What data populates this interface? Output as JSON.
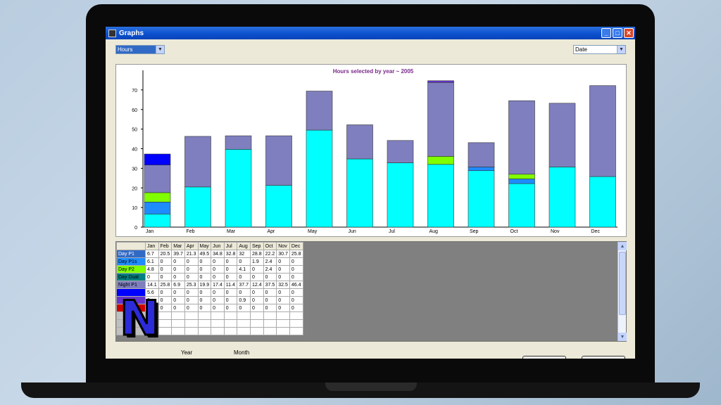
{
  "window": {
    "title": "Graphs"
  },
  "controls": {
    "metric_select": "Hours",
    "x_select": "Date"
  },
  "chart_data": {
    "type": "bar",
    "stacked": true,
    "title": "Hours selected by year ~ 2005",
    "categories": [
      "Jan",
      "Feb",
      "Mar",
      "Apr",
      "May",
      "Jun",
      "Jul",
      "Aug",
      "Sep",
      "Oct",
      "Nov",
      "Dec"
    ],
    "ylim": [
      0,
      80
    ],
    "yticks": [
      0,
      10,
      20,
      30,
      40,
      50,
      60,
      70
    ],
    "series": [
      {
        "name": "Day P1",
        "color": "#00ffff",
        "values": [
          6.7,
          20.5,
          39.7,
          21.3,
          49.5,
          34.8,
          32.8,
          32,
          28.8,
          22.2,
          30.7,
          25.8
        ]
      },
      {
        "name": "Day P1s",
        "color": "#1e8cff",
        "values": [
          6.1,
          0,
          0,
          0,
          0,
          0,
          0,
          0,
          1.9,
          2.4,
          0,
          0
        ]
      },
      {
        "name": "Day P2",
        "color": "#80ff00",
        "values": [
          4.8,
          0,
          0,
          0,
          0,
          0,
          0,
          4.1,
          0,
          2.4,
          0,
          0
        ]
      },
      {
        "name": "Day Dual",
        "color": "#008080",
        "values": [
          0,
          0,
          0,
          0,
          0,
          0,
          0,
          0,
          0,
          0,
          0,
          0
        ]
      },
      {
        "name": "Night P1",
        "color": "#7f7fbf",
        "values": [
          14.1,
          25.8,
          6.9,
          25.3,
          19.9,
          17.4,
          11.4,
          37.7,
          12.4,
          37.5,
          32.5,
          46.4
        ]
      },
      {
        "name": "",
        "color": "#0000ff",
        "values": [
          5.6,
          0,
          0,
          0,
          0,
          0,
          0,
          0,
          0,
          0,
          0,
          0
        ]
      },
      {
        "name": "",
        "color": "#6633cc",
        "values": [
          0,
          0,
          0,
          0,
          0,
          0,
          0,
          0.9,
          0,
          0,
          0,
          0
        ]
      },
      {
        "name": "",
        "color": "#cc0000",
        "values": [
          0,
          0,
          0,
          0,
          0,
          0,
          0,
          0,
          0,
          0,
          0,
          0
        ]
      }
    ]
  },
  "table": {
    "headers": [
      "",
      "Jan",
      "Feb",
      "Mar",
      "Apr",
      "May",
      "Jun",
      "Jul",
      "Aug",
      "Sep",
      "Oct",
      "Nov",
      "Dec"
    ],
    "rows": [
      {
        "label": "Day P1",
        "bg": "#316ac5",
        "fg": "#fff",
        "cells": [
          "6.7",
          "20.5",
          "39.7",
          "21.3",
          "49.5",
          "34.8",
          "32.8",
          "32",
          "28.8",
          "22.2",
          "30.7",
          "25.8"
        ]
      },
      {
        "label": "Day P1s",
        "bg": "#1e8cff",
        "fg": "#000",
        "cells": [
          "6.1",
          "0",
          "0",
          "0",
          "0",
          "0",
          "0",
          "0",
          "1.9",
          "2.4",
          "0",
          "0"
        ]
      },
      {
        "label": "Day P2",
        "bg": "#80ff00",
        "fg": "#000",
        "cells": [
          "4.8",
          "0",
          "0",
          "0",
          "0",
          "0",
          "0",
          "4.1",
          "0",
          "2.4",
          "0",
          "0"
        ]
      },
      {
        "label": "Day Dual",
        "bg": "#008080",
        "fg": "#000",
        "cells": [
          "0",
          "0",
          "0",
          "0",
          "0",
          "0",
          "0",
          "0",
          "0",
          "0",
          "0",
          "0"
        ]
      },
      {
        "label": "Night P1",
        "bg": "#7f7fbf",
        "fg": "#000",
        "cells": [
          "14.1",
          "25.8",
          "6.9",
          "25.3",
          "19.9",
          "17.4",
          "11.4",
          "37.7",
          "12.4",
          "37.5",
          "32.5",
          "46.4"
        ]
      },
      {
        "label": "",
        "bg": "#0000ff",
        "fg": "#000",
        "cells": [
          "5.6",
          "0",
          "0",
          "0",
          "0",
          "0",
          "0",
          "0",
          "0",
          "0",
          "0",
          "0"
        ]
      },
      {
        "label": "",
        "bg": "#6633cc",
        "fg": "#000",
        "cells": [
          "0",
          "0",
          "0",
          "0",
          "0",
          "0",
          "0",
          "0.9",
          "0",
          "0",
          "0",
          "0"
        ]
      },
      {
        "label": "",
        "bg": "#cc0000",
        "fg": "#000",
        "cells": [
          "0",
          "0",
          "0",
          "0",
          "0",
          "0",
          "0",
          "0",
          "0",
          "0",
          "0",
          "0"
        ]
      },
      {
        "label": "",
        "bg": "#c0c0c0",
        "fg": "#000",
        "cells": [
          "",
          "",
          "",
          "",
          "",
          "",
          "",
          "",
          "",
          "",
          "",
          ""
        ]
      },
      {
        "label": "",
        "bg": "#c0c0c0",
        "fg": "#000",
        "cells": [
          "",
          "",
          "",
          "",
          "",
          "",
          "",
          "",
          "",
          "",
          "",
          ""
        ]
      },
      {
        "label": "",
        "bg": "#c0c0c0",
        "fg": "#000",
        "cells": [
          "",
          "",
          "",
          "",
          "",
          "",
          "",
          "",
          "",
          "",
          "",
          ""
        ]
      }
    ]
  },
  "footer": {
    "year_label": "Year",
    "month_label": "Month"
  }
}
